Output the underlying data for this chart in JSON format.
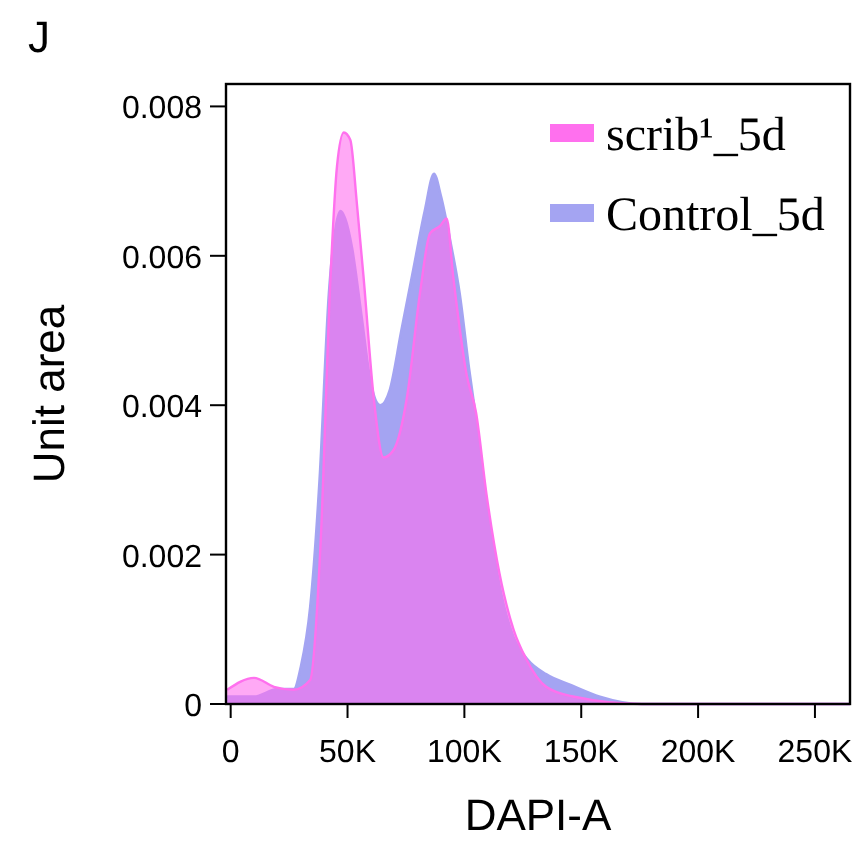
{
  "chart_data": {
    "type": "area",
    "xlabel": "DAPI-A",
    "ylabel": "Unit area",
    "annotations": [
      "J"
    ],
    "xlim": [
      -2000,
      265000
    ],
    "ylim": [
      0,
      0.0083
    ],
    "xticks": [
      0,
      {
        "value": 50000,
        "label": "50K"
      },
      {
        "value": 100000,
        "label": "100K"
      },
      {
        "value": 150000,
        "label": "150K"
      },
      {
        "value": 200000,
        "label": "200K"
      },
      {
        "value": 250000,
        "label": "250K"
      }
    ],
    "yticks": [
      0,
      0.002,
      0.004,
      0.006,
      0.008
    ],
    "legend": "top right",
    "grid": false,
    "series": [
      {
        "name": "Control_5d",
        "color": "#a4a4f2",
        "x": [
          -1500,
          10000,
          20000,
          27000,
          30000,
          34000,
          38000,
          42000,
          45000,
          47000,
          49000,
          52000,
          56000,
          60000,
          64000,
          68000,
          73000,
          78000,
          83000,
          87000,
          90000,
          94000,
          98000,
          102000,
          106000,
          110000,
          115000,
          121000,
          127000,
          135000,
          146000,
          158000,
          176000,
          265000
        ],
        "values": [
          0.0001,
          0.0001,
          0.0002,
          0.0002,
          0.0005,
          0.0013,
          0.003,
          0.0055,
          0.0064,
          0.0066,
          0.0065,
          0.0061,
          0.0052,
          0.0043,
          0.004,
          0.0042,
          0.005,
          0.0058,
          0.0066,
          0.0071,
          0.0068,
          0.0062,
          0.0055,
          0.0045,
          0.0036,
          0.0026,
          0.0016,
          0.0009,
          0.0006,
          0.0004,
          0.00025,
          0.0001,
          0,
          0
        ]
      },
      {
        "name": "scrib¹_5d",
        "color": "#ff70ee",
        "x": [
          -1500,
          10000,
          18500,
          27000,
          34000,
          38400,
          42700,
          45500,
          48400,
          51200,
          54000,
          56900,
          61200,
          65400,
          69700,
          75400,
          81000,
          85300,
          89600,
          92400,
          95300,
          101000,
          105000,
          109500,
          115000,
          121000,
          126500,
          135000,
          146500,
          176000,
          265000
        ],
        "values": [
          0.00019,
          0.00035,
          0.00023,
          0.00019,
          0.00032,
          0.0021,
          0.0057,
          0.0072,
          0.00765,
          0.00755,
          0.0067,
          0.0057,
          0.0041,
          0.0033,
          0.0034,
          0.0041,
          0.0055,
          0.0063,
          0.0064,
          0.0065,
          0.0057,
          0.0044,
          0.0039,
          0.0028,
          0.00175,
          0.001,
          0.0006,
          0.00023,
          0.0001,
          0,
          0
        ]
      }
    ]
  }
}
